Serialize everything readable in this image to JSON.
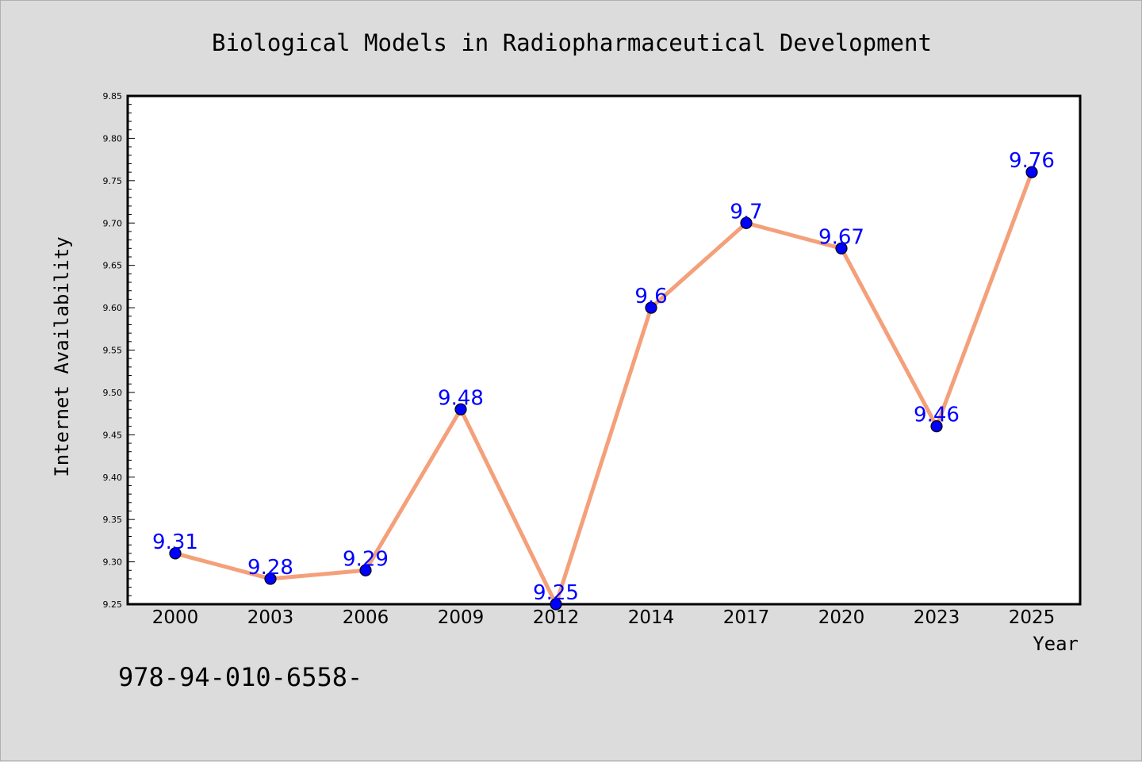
{
  "chart_data": {
    "type": "line",
    "title": "Biological Models in Radiopharmaceutical Development",
    "xlabel": "Year",
    "ylabel": "Internet Availability",
    "categories": [
      "2000",
      "2003",
      "2006",
      "2009",
      "2012",
      "2014",
      "2017",
      "2020",
      "2023",
      "2025"
    ],
    "series": [
      {
        "values": [
          9.31,
          9.28,
          9.29,
          9.48,
          9.25,
          9.6,
          9.7,
          9.67,
          9.46,
          9.76
        ],
        "labels": [
          "9.31",
          "9.28",
          "9.29",
          "9.48",
          "9.25",
          "9.6",
          "9.7",
          "9.67",
          "9.46",
          "9.76"
        ]
      }
    ],
    "ylim": [
      9.25,
      9.85
    ],
    "yticks": [
      "9.25",
      "9.30",
      "9.35",
      "9.40",
      "9.45",
      "9.50",
      "9.55",
      "9.60",
      "9.65",
      "9.70",
      "9.75",
      "9.80",
      "9.85"
    ],
    "line_color": "#f4a07a",
    "marker_color": "#0000ff",
    "label_color": "#0000ff",
    "plot_background": "#ffffff",
    "grid": false,
    "legend": "none"
  },
  "footnote": "978-94-010-6558-"
}
